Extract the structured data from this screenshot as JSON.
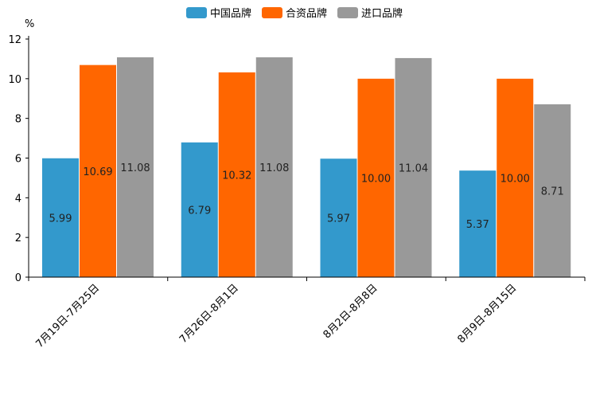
{
  "chart_data": {
    "type": "bar",
    "ylabel": "%",
    "ylim": [
      0,
      12
    ],
    "yticks": [
      0,
      2,
      4,
      6,
      8,
      10,
      12
    ],
    "categories": [
      "7月19日-7月25日",
      "7月26日-8月1日",
      "8月2日-8月8日",
      "8月9日-8月15日"
    ],
    "series": [
      {
        "name": "中国品牌",
        "color": "#3399cc",
        "values": [
          5.99,
          6.79,
          5.97,
          5.37
        ],
        "labels": [
          "5.99",
          "6.79",
          "5.97",
          "5.37"
        ]
      },
      {
        "name": "合资品牌",
        "color": "#ff6600",
        "values": [
          10.69,
          10.32,
          10.0,
          10.0
        ],
        "labels": [
          "10.69",
          "10.32",
          "10.00",
          "10.00"
        ]
      },
      {
        "name": "进口品牌",
        "color": "#999999",
        "values": [
          11.08,
          11.08,
          11.04,
          8.71
        ],
        "labels": [
          "11.08",
          "11.08",
          "11.04",
          "8.71"
        ]
      }
    ],
    "legend_position": "top-center",
    "grid": false
  }
}
